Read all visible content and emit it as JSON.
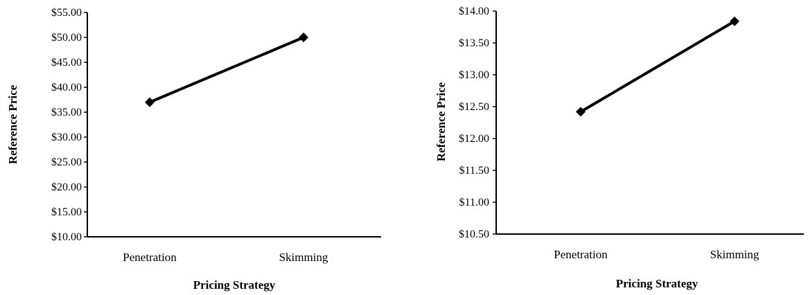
{
  "chart_data": [
    {
      "type": "line",
      "xlabel": "Pricing Strategy",
      "ylabel": "Reference Price",
      "categories": [
        "Penetration",
        "Skimming"
      ],
      "series": [
        {
          "values": [
            37.0,
            50.0
          ]
        }
      ],
      "ylim": [
        10,
        55
      ],
      "yticks": [
        "$10.00",
        "$15.00",
        "$20.00",
        "$25.00",
        "$30.00",
        "$35.00",
        "$40.00",
        "$45.00",
        "$50.00",
        "$55.00"
      ],
      "yvals": [
        10,
        15,
        20,
        25,
        30,
        35,
        40,
        45,
        50,
        55
      ],
      "grid": false,
      "marker": "diamond",
      "line_color": "#000000"
    },
    {
      "type": "line",
      "xlabel": "Pricing Strategy",
      "ylabel": "Reference Price",
      "categories": [
        "Penetration",
        "Skimming"
      ],
      "series": [
        {
          "values": [
            12.42,
            13.84
          ]
        }
      ],
      "ylim": [
        10.5,
        14.0
      ],
      "yticks": [
        "$10.50",
        "$11.00",
        "$11.50",
        "$12.00",
        "$12.50",
        "$13.00",
        "$13.50",
        "$14.00"
      ],
      "yvals": [
        10.5,
        11.0,
        11.5,
        12.0,
        12.5,
        13.0,
        13.5,
        14.0
      ],
      "grid": false,
      "marker": "diamond",
      "line_color": "#000000"
    }
  ]
}
